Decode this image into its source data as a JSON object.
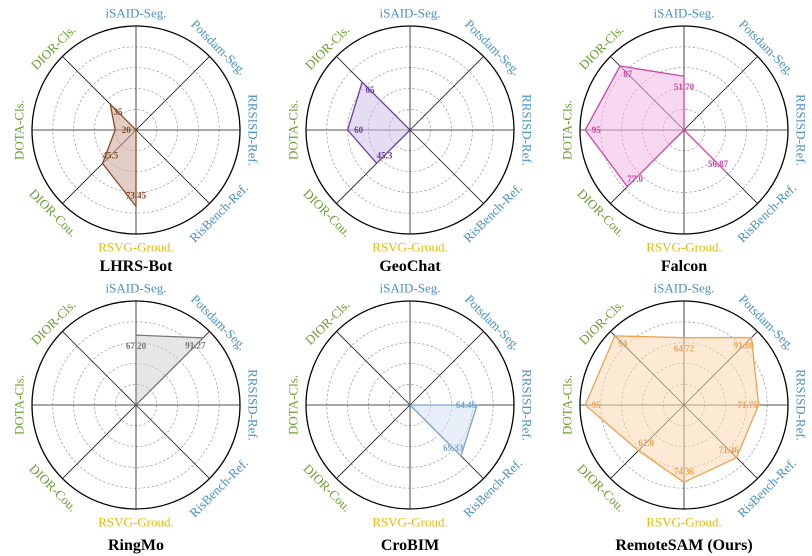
{
  "figure": {
    "axes": [
      "iSAID-Seg.",
      "Potsdam-Seg.",
      "RRSISD-Ref.",
      "RisBench-Ref.",
      "RSVG-Groud.",
      "DIOR-Cou.",
      "DOTA-Cls.",
      "DIOR-Cls."
    ],
    "axis_colors": [
      "#4a90c4",
      "#4a90c4",
      "#4a90c4",
      "#4a90c4",
      "#e8b90a",
      "#6aa032",
      "#6aa032",
      "#6aa032"
    ]
  },
  "chart_data": [
    {
      "type": "radar",
      "title": "LHRS-Bot",
      "color": "#8b4a2b",
      "fill": "#c9a896",
      "values": [
        null,
        null,
        null,
        null,
        73.45,
        45.5,
        20,
        35
      ],
      "labels": [
        "",
        "",
        "",
        "",
        "73.45",
        "45.5",
        "20",
        "35"
      ]
    },
    {
      "type": "radar",
      "title": "GeoChat",
      "color": "#6a3d9a",
      "fill": "#cfc3ea",
      "values": [
        null,
        null,
        null,
        null,
        null,
        45.3,
        60,
        65
      ],
      "labels": [
        "",
        "",
        "",
        "",
        "",
        "45.3",
        "60",
        "65"
      ]
    },
    {
      "type": "radar",
      "title": "Falcon",
      "color": "#cc44aa",
      "fill": "#f2b8e3",
      "values": [
        51.7,
        null,
        null,
        56.87,
        null,
        77.0,
        95,
        87
      ],
      "labels": [
        "51.70",
        "",
        "",
        "56.87",
        "",
        "77.0",
        "95",
        "87"
      ]
    },
    {
      "type": "radar",
      "title": "RingMo",
      "color": "#777777",
      "fill": "#d2d2d2",
      "values": [
        67.2,
        91.27,
        null,
        null,
        null,
        null,
        null,
        null
      ],
      "labels": [
        "67.20",
        "91.27",
        "",
        "",
        "",
        "",
        "",
        ""
      ]
    },
    {
      "type": "radar",
      "title": "CroBIM",
      "color": "#7aa3d0",
      "fill": "#d6e2f3",
      "values": [
        null,
        null,
        64.46,
        69.33,
        null,
        null,
        null,
        null
      ],
      "labels": [
        "",
        "",
        "64.46",
        "69.33",
        "",
        "",
        "",
        ""
      ]
    },
    {
      "type": "radar",
      "title": "RemoteSAM (Ours)",
      "color": "#f0a050",
      "fill": "#fcd9b0",
      "values": [
        64.72,
        91.8,
        71.75,
        71.46,
        74.36,
        62.0,
        95,
        94
      ],
      "labels": [
        "64.72",
        "91.80",
        "71.75",
        "71.46",
        "74.36",
        "62.0",
        "95",
        "94"
      ]
    }
  ]
}
